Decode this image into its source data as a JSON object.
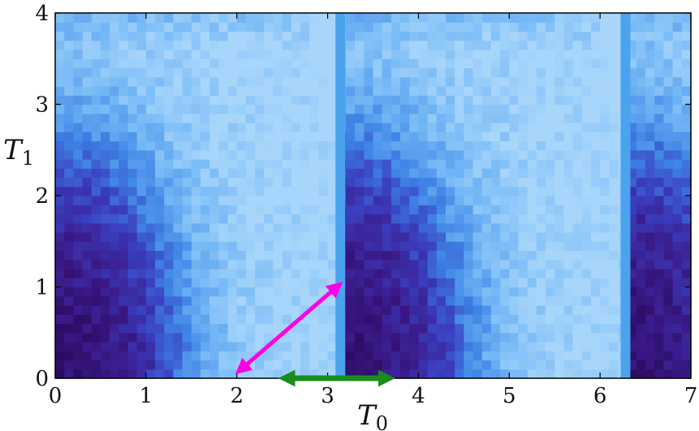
{
  "chart_data": {
    "type": "heatmap",
    "title": "",
    "xlabel": "T0",
    "ylabel": "T1",
    "xlim": [
      0,
      7
    ],
    "ylim": [
      0,
      4
    ],
    "x_ticks": [
      "0",
      "1",
      "2",
      "3",
      "4",
      "5",
      "6",
      "7"
    ],
    "y_ticks": [
      "0",
      "1",
      "2",
      "3",
      "4"
    ],
    "grid": false,
    "colormap": [
      "#2a0a5e",
      "#3b1a8a",
      "#3a3fc0",
      "#3f86e6",
      "#76b9f6",
      "#a8d6fb"
    ],
    "vertical_bands": [
      {
        "x": 3.14,
        "color": "#4aa3ec"
      },
      {
        "x": 6.28,
        "color": "#4aa3ec"
      }
    ],
    "annotations": [
      {
        "type": "double-arrow",
        "color": "#ff00e6",
        "from": [
          2.05,
          0.1
        ],
        "to": [
          3.1,
          1.0
        ]
      },
      {
        "type": "double-arrow",
        "color": "#1a8c1a",
        "from": [
          2.55,
          0.0
        ],
        "to": [
          3.65,
          0.0
        ]
      }
    ]
  },
  "labels": {
    "x_axis": "T",
    "x_sub": "0",
    "y_axis": "T",
    "y_sub": "1"
  }
}
